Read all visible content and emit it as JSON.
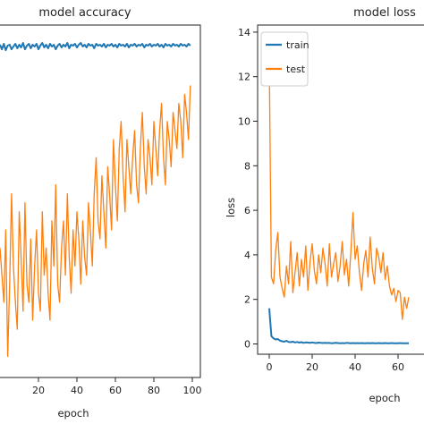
{
  "chart_data": [
    {
      "type": "line",
      "title": "model accuracy",
      "xlabel": "epoch",
      "ylabel": "",
      "xlim": [
        0,
        100
      ],
      "xticks": [
        20,
        40,
        60,
        80,
        100
      ],
      "xtick_labels": [
        "20",
        "40",
        "60",
        "80",
        "100"
      ],
      "series": [
        {
          "color": "#1f77b4",
          "values": [
            0.985,
            0.98,
            0.986,
            0.979,
            0.984,
            0.985,
            0.98,
            0.983,
            0.986,
            0.981,
            0.985,
            0.982,
            0.987,
            0.98,
            0.984,
            0.986,
            0.981,
            0.985,
            0.983,
            0.986,
            0.98,
            0.984,
            0.987,
            0.982,
            0.985,
            0.981,
            0.986,
            0.983,
            0.985,
            0.98,
            0.984,
            0.986,
            0.982,
            0.985,
            0.983,
            0.987,
            0.981,
            0.985,
            0.984,
            0.986,
            0.982,
            0.985,
            0.987,
            0.983,
            0.985,
            0.982,
            0.986,
            0.984,
            0.985,
            0.981,
            0.986,
            0.984,
            0.985,
            0.983,
            0.986,
            0.982,
            0.985,
            0.984,
            0.986,
            0.983,
            0.985,
            0.982,
            0.986,
            0.984,
            0.985,
            0.983,
            0.986,
            0.982,
            0.985,
            0.984,
            0.986,
            0.983,
            0.985,
            0.984,
            0.986,
            0.982,
            0.985,
            0.984,
            0.986,
            0.983,
            0.985,
            0.984,
            0.986,
            0.983,
            0.985,
            0.982,
            0.986,
            0.984,
            0.985,
            0.983,
            0.986,
            0.984,
            0.985,
            0.983,
            0.986,
            0.984,
            0.985,
            0.983,
            0.986,
            0.984
          ]
        },
        {
          "color": "#ff7f0e",
          "values": [
            0.76,
            0.73,
            0.7,
            0.78,
            0.64,
            0.72,
            0.82,
            0.74,
            0.7,
            0.67,
            0.8,
            0.75,
            0.69,
            0.81,
            0.72,
            0.7,
            0.77,
            0.68,
            0.74,
            0.78,
            0.71,
            0.69,
            0.8,
            0.73,
            0.76,
            0.71,
            0.68,
            0.79,
            0.74,
            0.83,
            0.72,
            0.7,
            0.76,
            0.79,
            0.73,
            0.82,
            0.75,
            0.71,
            0.78,
            0.74,
            0.8,
            0.77,
            0.72,
            0.79,
            0.75,
            0.73,
            0.81,
            0.78,
            0.74,
            0.82,
            0.86,
            0.79,
            0.77,
            0.84,
            0.8,
            0.76,
            0.85,
            0.82,
            0.78,
            0.88,
            0.83,
            0.79,
            0.87,
            0.9,
            0.84,
            0.8,
            0.88,
            0.85,
            0.82,
            0.86,
            0.89,
            0.83,
            0.81,
            0.87,
            0.91,
            0.85,
            0.82,
            0.88,
            0.86,
            0.83,
            0.9,
            0.87,
            0.84,
            0.89,
            0.92,
            0.86,
            0.83,
            0.9,
            0.88,
            0.85,
            0.91,
            0.89,
            0.87,
            0.92,
            0.9,
            0.86,
            0.93,
            0.91,
            0.88,
            0.94
          ]
        }
      ]
    },
    {
      "type": "line",
      "title": "model loss",
      "xlabel": "epoch",
      "ylabel": "loss",
      "xlim": [
        -3,
        66
      ],
      "ylim": [
        -0.7,
        14.3
      ],
      "xticks": [
        0,
        20,
        40,
        60
      ],
      "xtick_labels": [
        "0",
        "20",
        "40",
        "60"
      ],
      "yticks": [
        0,
        2,
        4,
        6,
        8,
        10,
        12,
        14
      ],
      "legend_position": "upper-left",
      "series": [
        {
          "name": "train",
          "color": "#1f77b4",
          "values": [
            1.6,
            0.35,
            0.25,
            0.2,
            0.22,
            0.15,
            0.12,
            0.1,
            0.14,
            0.09,
            0.08,
            0.1,
            0.07,
            0.09,
            0.06,
            0.08,
            0.05,
            0.07,
            0.06,
            0.05,
            0.07,
            0.05,
            0.04,
            0.06,
            0.05,
            0.04,
            0.05,
            0.04,
            0.05,
            0.03,
            0.04,
            0.05,
            0.04,
            0.03,
            0.04,
            0.03,
            0.05,
            0.04,
            0.03,
            0.04,
            0.03,
            0.04,
            0.03,
            0.04,
            0.03,
            0.03,
            0.04,
            0.03,
            0.04,
            0.03,
            0.03,
            0.04,
            0.03,
            0.03,
            0.04,
            0.03,
            0.03,
            0.04,
            0.03,
            0.03,
            0.03,
            0.04,
            0.03,
            0.03,
            0.03,
            0.03
          ]
        },
        {
          "name": "test",
          "color": "#ff7f0e",
          "values": [
            12.8,
            3.0,
            2.7,
            4.2,
            5.0,
            3.0,
            2.5,
            2.1,
            3.5,
            2.7,
            4.6,
            2.3,
            3.2,
            4.1,
            2.6,
            3.8,
            3.0,
            4.4,
            2.4,
            3.7,
            4.5,
            3.3,
            2.7,
            4.0,
            3.2,
            4.3,
            3.6,
            2.6,
            4.5,
            3.0,
            3.6,
            4.1,
            2.8,
            3.5,
            4.6,
            3.1,
            3.8,
            2.6,
            4.1,
            5.9,
            3.8,
            4.4,
            3.2,
            2.4,
            3.6,
            4.2,
            3.0,
            4.8,
            3.4,
            2.7,
            4.3,
            3.9,
            3.2,
            4.1,
            2.9,
            3.5,
            2.6,
            2.2,
            2.5,
            1.9,
            2.4,
            2.3,
            1.1,
            2.1,
            1.6,
            2.1
          ]
        }
      ]
    }
  ]
}
